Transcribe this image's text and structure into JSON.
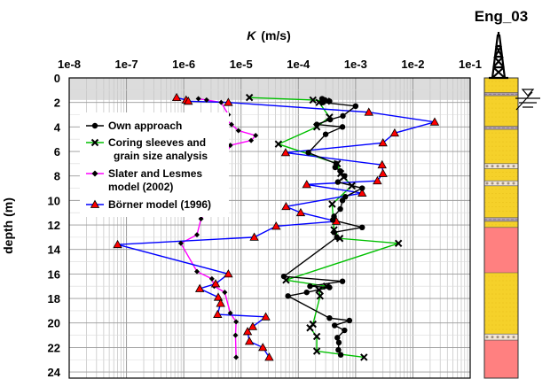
{
  "chart_data": {
    "type": "scatter",
    "title": "",
    "xlabel": "K (m/s)",
    "xlabel_main": "K",
    "xlabel_unit": "(m/s)",
    "ylabel": "depth (m)",
    "x_scale": "log",
    "xlim": [
      1e-08,
      0.1
    ],
    "ylim": [
      24.5,
      0
    ],
    "x_axis_position": "top",
    "x_ticks": [
      1e-08,
      1e-07,
      1e-06,
      1e-05,
      0.0001,
      0.001,
      0.01,
      0.1
    ],
    "x_tick_labels": [
      "1e-8",
      "1e-7",
      "1e-6",
      "1e-5",
      "1e-4",
      "1e-3",
      "1e-2",
      "1e-1"
    ],
    "y_ticks": [
      0,
      2,
      4,
      6,
      8,
      10,
      12,
      14,
      16,
      18,
      20,
      22,
      24
    ],
    "y_tick_labels": [
      "0",
      "2",
      "4",
      "6",
      "8",
      "10",
      "12",
      "14",
      "16",
      "18",
      "20",
      "22",
      "24"
    ],
    "grid": true,
    "shaded_depth_range": [
      0,
      1.8
    ],
    "legend_position": "upper-left",
    "series": [
      {
        "name": "Own approach",
        "color": "#000000",
        "marker": "circle",
        "points": [
          [
            0.00026,
            1.7
          ],
          [
            0.00029,
            1.8
          ],
          [
            0.00035,
            1.9
          ],
          [
            0.00027,
            2.0
          ],
          [
            0.001,
            2.3
          ],
          [
            0.0006,
            3.1
          ],
          [
            0.00036,
            3.4
          ],
          [
            0.00021,
            3.8
          ],
          [
            0.00059,
            4.0
          ],
          [
            0.0003,
            4.6
          ],
          [
            0.00015,
            6.1
          ],
          [
            0.00046,
            7.0
          ],
          [
            0.00044,
            7.3
          ],
          [
            0.00054,
            7.6
          ],
          [
            0.00064,
            8.0
          ],
          [
            0.00049,
            8.5
          ],
          [
            0.0013,
            9.0
          ],
          [
            0.00066,
            9.7
          ],
          [
            0.00059,
            10.0
          ],
          [
            0.00054,
            10.7
          ],
          [
            0.00042,
            11.3
          ],
          [
            0.0004,
            11.6
          ],
          [
            0.0013,
            12.2
          ],
          [
            0.00042,
            12.6
          ],
          [
            0.00047,
            13.0
          ],
          [
            5.6e-05,
            16.2
          ],
          [
            0.00059,
            16.6
          ],
          [
            0.00016,
            17.0
          ],
          [
            0.00035,
            17.1
          ],
          [
            0.00014,
            17.5
          ],
          [
            6.6e-05,
            17.8
          ],
          [
            0.00035,
            19.6
          ],
          [
            0.00078,
            19.8
          ],
          [
            0.00043,
            20.2
          ],
          [
            0.00064,
            20.6
          ],
          [
            0.00048,
            21.2
          ],
          [
            0.00051,
            21.6
          ],
          [
            0.0005,
            22.2
          ],
          [
            0.00055,
            22.6
          ]
        ]
      },
      {
        "name": "Coring sleeves and grain size analysis",
        "name_line1": "Coring sleeves and",
        "name_line2": "grain size analysis",
        "color": "#00c000",
        "marker": "x",
        "points": [
          [
            1.4e-05,
            1.6
          ],
          [
            0.00018,
            1.8
          ],
          [
            0.00031,
            1.9
          ],
          [
            0.00023,
            2.0
          ],
          [
            0.00035,
            3.2
          ],
          [
            0.00021,
            4.0
          ],
          [
            4.5e-05,
            5.4
          ],
          [
            0.00048,
            7.0
          ],
          [
            0.00055,
            7.8
          ],
          [
            0.00062,
            8.1
          ],
          [
            0.00086,
            8.8
          ],
          [
            0.00039,
            10.3
          ],
          [
            0.00042,
            12.4
          ],
          [
            0.00053,
            13.1
          ],
          [
            0.0056,
            13.5
          ],
          [
            6.1e-05,
            16.5
          ],
          [
            0.00031,
            17.0
          ],
          [
            0.00023,
            17.3
          ],
          [
            0.00024,
            17.8
          ],
          [
            0.00018,
            20.1
          ],
          [
            0.00016,
            20.4
          ],
          [
            0.00021,
            21.1
          ],
          [
            0.00021,
            22.3
          ],
          [
            0.0014,
            22.8
          ]
        ]
      },
      {
        "name": "Slater and Lesmes model (2002)",
        "name_line1": "Slater and Lesmes",
        "name_line2": "model (2002)",
        "color": "#ff00ff",
        "marker": "diamond",
        "points": [
          [
            1.8e-06,
            1.7
          ],
          [
            2.5e-06,
            1.8
          ],
          [
            4.5e-06,
            2.0
          ],
          [
            6e-06,
            3.0
          ],
          [
            5.5e-06,
            3.4
          ],
          [
            6.8e-06,
            3.8
          ],
          [
            9e-06,
            4.3
          ],
          [
            1.8e-05,
            4.7
          ],
          [
            1.5e-05,
            5.1
          ],
          [
            6.5e-06,
            5.5
          ],
          [
            5.3e-06,
            6.4
          ],
          [
            4.5e-06,
            6.8
          ],
          [
            4.1e-06,
            7.6
          ],
          [
            3.6e-06,
            8.0
          ],
          [
            3e-06,
            9.0
          ],
          [
            2.9e-06,
            10.0
          ],
          [
            2.1e-06,
            10.5
          ],
          [
            2.5e-06,
            10.9
          ],
          [
            2e-06,
            11.5
          ],
          [
            1.7e-06,
            12.8
          ],
          [
            8.9e-07,
            13.5
          ],
          [
            1.7e-06,
            15.8
          ],
          [
            3.1e-06,
            16.4
          ],
          [
            3.4e-06,
            17.0
          ],
          [
            5.2e-06,
            17.5
          ],
          [
            6.5e-06,
            19.2
          ],
          [
            8.2e-06,
            19.9
          ],
          [
            8e-06,
            21.0
          ],
          [
            8.2e-06,
            22.8
          ]
        ]
      },
      {
        "name": "Börner model (1996)",
        "color": "#0000ff",
        "marker": "triangle",
        "points": [
          [
            7.5e-07,
            1.6
          ],
          [
            1.1e-06,
            1.8
          ],
          [
            1.2e-06,
            1.9
          ],
          [
            6e-06,
            2.0
          ],
          [
            0.0017,
            2.8
          ],
          [
            0.024,
            3.6
          ],
          [
            0.0048,
            4.5
          ],
          [
            0.003,
            5.3
          ],
          [
            6e-05,
            6.1
          ],
          [
            0.0029,
            7.1
          ],
          [
            0.003,
            7.8
          ],
          [
            0.0024,
            8.4
          ],
          [
            0.00014,
            8.7
          ],
          [
            0.0013,
            9.4
          ],
          [
            6.1e-05,
            10.5
          ],
          [
            0.00011,
            11.0
          ],
          [
            0.00046,
            11.7
          ],
          [
            4.1e-05,
            12.1
          ],
          [
            1.7e-05,
            13.0
          ],
          [
            7e-08,
            13.6
          ],
          [
            6e-06,
            16.0
          ],
          [
            3.6e-06,
            16.8
          ],
          [
            1.9e-06,
            17.2
          ],
          [
            4e-06,
            17.9
          ],
          [
            4.4e-06,
            18.4
          ],
          [
            3.9e-06,
            19.3
          ],
          [
            2.7e-05,
            19.5
          ],
          [
            1.6e-05,
            20.3
          ],
          [
            1.3e-05,
            20.7
          ],
          [
            1.4e-05,
            21.5
          ],
          [
            2.4e-05,
            22.0
          ],
          [
            3.1e-05,
            22.8
          ]
        ]
      }
    ],
    "well_log": {
      "title": "Eng_03",
      "water_table_depth": 2.0,
      "layers": [
        {
          "top": 0.0,
          "bottom": 1.2,
          "material": "sand",
          "color": "#f5d12a"
        },
        {
          "top": 1.2,
          "bottom": 1.45,
          "material": "clay-band",
          "color": "#b0a0b0"
        },
        {
          "top": 1.45,
          "bottom": 3.95,
          "material": "sand",
          "color": "#f5d12a"
        },
        {
          "top": 3.95,
          "bottom": 4.2,
          "material": "clay-band",
          "color": "#b0a0b0"
        },
        {
          "top": 4.2,
          "bottom": 7.0,
          "material": "sand",
          "color": "#f5d12a"
        },
        {
          "top": 7.0,
          "bottom": 7.4,
          "material": "gravel",
          "color": "#f2e6d8"
        },
        {
          "top": 7.4,
          "bottom": 8.4,
          "material": "sand",
          "color": "#f5d12a"
        },
        {
          "top": 8.4,
          "bottom": 8.8,
          "material": "gravel",
          "color": "#f2e6d8"
        },
        {
          "top": 8.8,
          "bottom": 11.4,
          "material": "sand",
          "color": "#f5d12a"
        },
        {
          "top": 11.4,
          "bottom": 11.7,
          "material": "clay-band",
          "color": "#b0a0b0"
        },
        {
          "top": 11.7,
          "bottom": 12.2,
          "material": "sand",
          "color": "#f5d12a"
        },
        {
          "top": 12.2,
          "bottom": 15.9,
          "material": "clay",
          "color": "#ff8080"
        },
        {
          "top": 15.9,
          "bottom": 20.9,
          "material": "sand",
          "color": "#f5d12a"
        },
        {
          "top": 20.9,
          "bottom": 21.4,
          "material": "gravel",
          "color": "#f2e6d8"
        },
        {
          "top": 21.4,
          "bottom": 24.5,
          "material": "clay",
          "color": "#ff8080"
        }
      ]
    }
  }
}
